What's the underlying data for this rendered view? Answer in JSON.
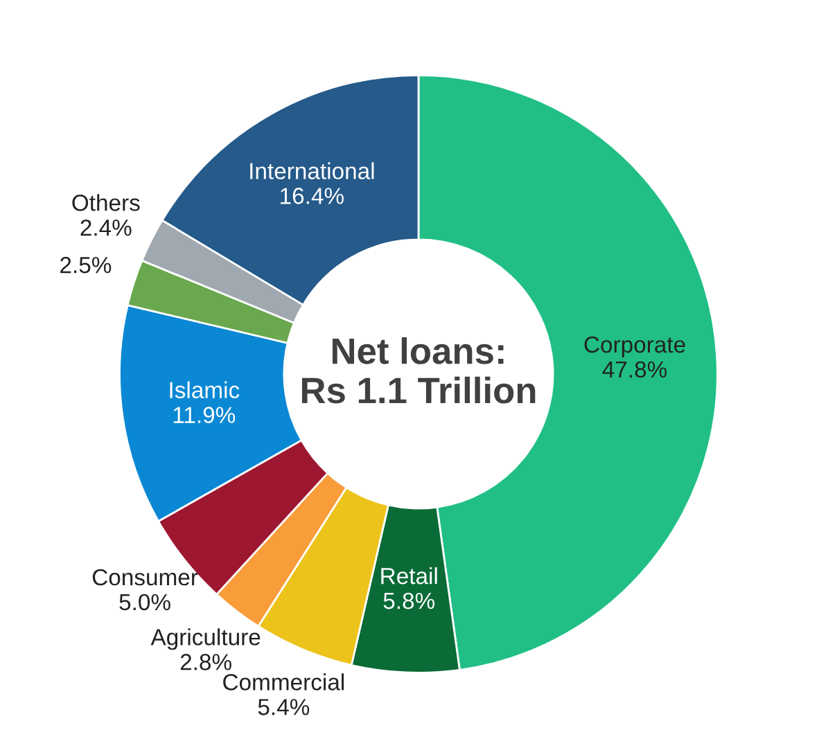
{
  "chart_data": {
    "type": "donut",
    "title": "Net loans:\nRs 1.1 Trillion",
    "categories": [
      "Corporate",
      "Retail",
      "Commercial",
      "Agriculture",
      "Consumer",
      "Islamic",
      null,
      "Others",
      "International"
    ],
    "values": [
      47.8,
      5.8,
      5.4,
      2.8,
      5.0,
      11.9,
      2.5,
      2.4,
      16.4
    ],
    "value_labels": [
      "47.8%",
      "5.8%",
      "5.4%",
      "2.8%",
      "5.0%",
      "11.9%",
      "2.5%",
      "2.4%",
      "16.4%"
    ],
    "colors": [
      "#21bf85",
      "#0a6b37",
      "#ecc31b",
      "#f99d3a",
      "#9e1730",
      "#0a88d4",
      "#6aa84f",
      "#a0a8b0",
      "#255a8a"
    ],
    "legend": false
  }
}
